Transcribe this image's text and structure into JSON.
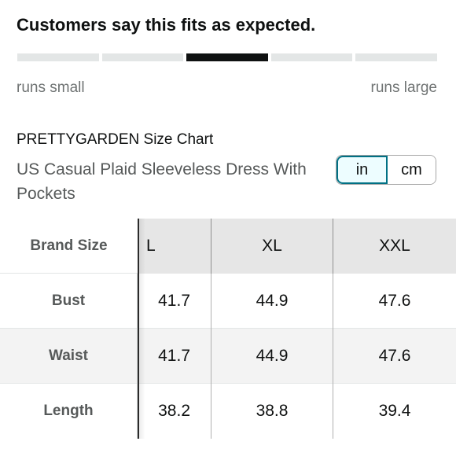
{
  "fit": {
    "heading": "Customers say this fits as expected.",
    "segments": 5,
    "active_segment": 3,
    "label_small": "runs small",
    "label_large": "runs large"
  },
  "size_chart": {
    "title": "PRETTYGARDEN Size Chart",
    "product_name": "US Casual Plaid Sleeveless Dress With Pockets"
  },
  "unit_toggle": {
    "options": [
      "in",
      "cm"
    ],
    "selected": "in"
  },
  "table": {
    "header_label": "Brand Size",
    "columns": [
      "L",
      "XL",
      "XXL"
    ],
    "rows": [
      {
        "label": "Bust",
        "values": [
          "41.7",
          "44.9",
          "47.6"
        ]
      },
      {
        "label": "Waist",
        "values": [
          "41.7",
          "44.9",
          "47.6"
        ]
      },
      {
        "label": "Length",
        "values": [
          "38.2",
          "38.8",
          "39.4"
        ]
      }
    ]
  }
}
